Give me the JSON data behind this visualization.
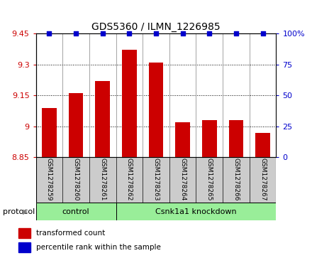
{
  "title": "GDS5360 / ILMN_1226985",
  "samples": [
    "GSM1278259",
    "GSM1278260",
    "GSM1278261",
    "GSM1278262",
    "GSM1278263",
    "GSM1278264",
    "GSM1278265",
    "GSM1278266",
    "GSM1278267"
  ],
  "bar_values": [
    9.09,
    9.16,
    9.22,
    9.37,
    9.31,
    9.02,
    9.03,
    9.03,
    8.97
  ],
  "bar_base": 8.85,
  "percentile_values": [
    100,
    100,
    100,
    100,
    100,
    100,
    100,
    100,
    100
  ],
  "ylim_left": [
    8.85,
    9.45
  ],
  "ylim_right": [
    0,
    100
  ],
  "yticks_left": [
    8.85,
    9.0,
    9.15,
    9.3,
    9.45
  ],
  "yticks_right": [
    0,
    25,
    50,
    75,
    100
  ],
  "bar_color": "#cc0000",
  "dot_color": "#0000cc",
  "bg_color": "#cccccc",
  "control_color": "#99ee99",
  "knockdown_color": "#99ee99",
  "protocol_groups": [
    {
      "label": "control",
      "indices": [
        0,
        1,
        2
      ]
    },
    {
      "label": "Csnk1a1 knockdown",
      "indices": [
        3,
        4,
        5,
        6,
        7,
        8
      ]
    }
  ],
  "legend_bar_label": "transformed count",
  "legend_dot_label": "percentile rank within the sample",
  "protocol_label": "protocol"
}
